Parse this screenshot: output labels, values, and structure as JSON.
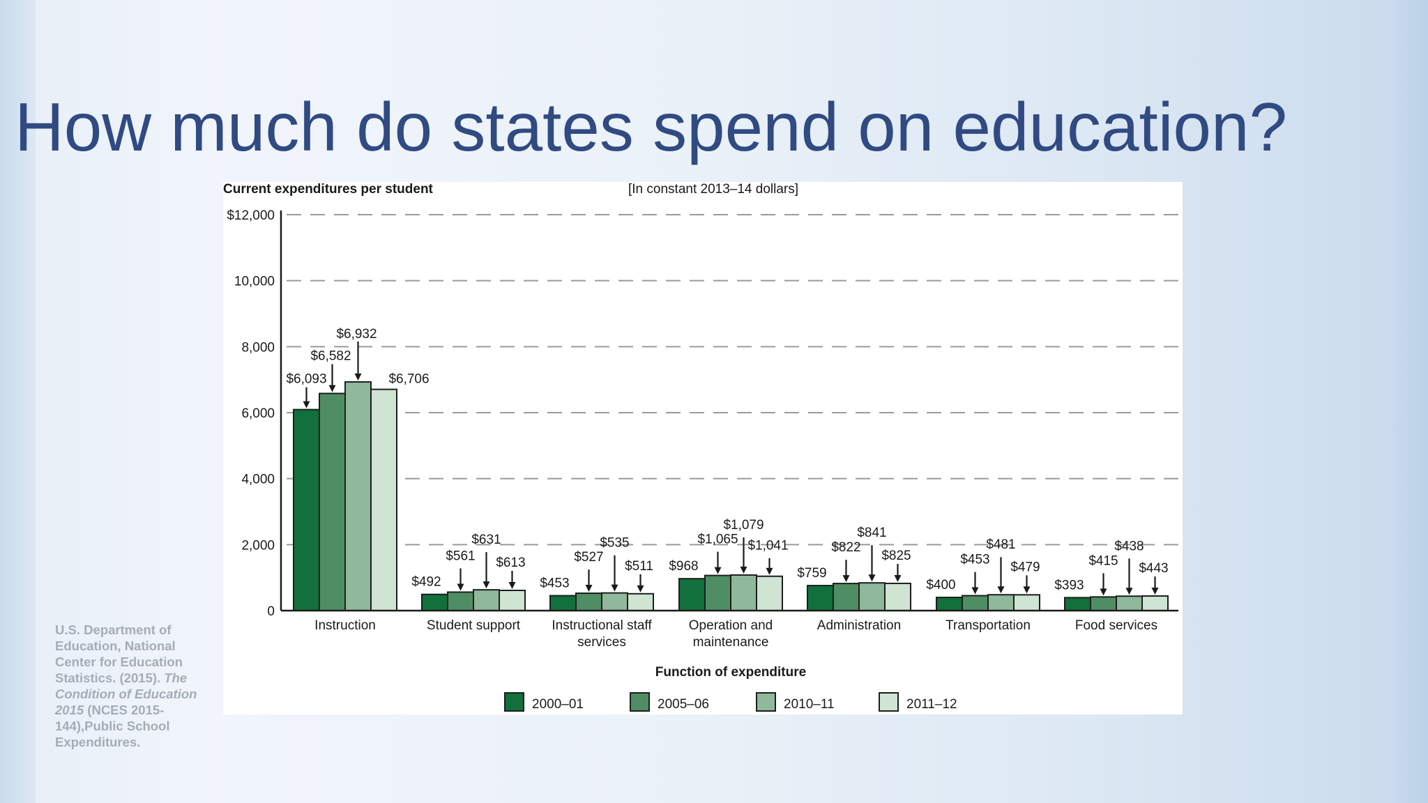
{
  "slide": {
    "title": "How much do states spend on education?"
  },
  "citation": {
    "part1": "U.S. Department of Education, National Center for Education Statistics. (2015). ",
    "italic": "The Condition of Education 2015",
    "part2": " (NCES 2015-144),Public School Expenditures."
  },
  "colors": {
    "title": "#304a82",
    "series": [
      "#11703b",
      "#4f8e64",
      "#8fb99a",
      "#cfe4d3"
    ],
    "bar_outline": "#1d1d1d",
    "grid": "#9a9a9a"
  },
  "chart_data": {
    "type": "bar",
    "ylabel": "Current expenditures per student",
    "note": "[In constant 2013–14 dollars]",
    "xlabel": "Function of expenditure",
    "ylim": [
      0,
      12000
    ],
    "yticks": [
      0,
      2000,
      4000,
      6000,
      8000,
      10000,
      12000
    ],
    "ytick_labels": [
      "0",
      "2,000",
      "4,000",
      "6,000",
      "8,000",
      "10,000",
      "$12,000"
    ],
    "grid": "horizontal dashed",
    "legend_position": "bottom-center",
    "categories": [
      [
        "Instruction"
      ],
      [
        "Student support"
      ],
      [
        "Instructional staff",
        "services"
      ],
      [
        "Operation and",
        "maintenance"
      ],
      [
        "Administration"
      ],
      [
        "Transportation"
      ],
      [
        "Food services"
      ]
    ],
    "series": [
      {
        "name": "2000–01",
        "values": [
          6093,
          492,
          453,
          968,
          759,
          400,
          393
        ]
      },
      {
        "name": "2005–06",
        "values": [
          6582,
          561,
          527,
          1065,
          822,
          453,
          415
        ]
      },
      {
        "name": "2010–11",
        "values": [
          6932,
          631,
          535,
          1079,
          841,
          481,
          438
        ]
      },
      {
        "name": "2011–12",
        "values": [
          6706,
          613,
          511,
          1041,
          825,
          479,
          443
        ]
      }
    ],
    "data_labels": [
      [
        "$6,093",
        "$6,582",
        "$6,932",
        "$6,706"
      ],
      [
        "$492",
        "$561",
        "$631",
        "$613"
      ],
      [
        "$453",
        "$527",
        "$535",
        "$511"
      ],
      [
        "$968",
        "$1,065",
        "$1,079",
        "$1,041"
      ],
      [
        "$759",
        "$822",
        "$841",
        "$825"
      ],
      [
        "$400",
        "$453",
        "$481",
        "$479"
      ],
      [
        "$393",
        "$415",
        "$438",
        "$443"
      ]
    ]
  }
}
